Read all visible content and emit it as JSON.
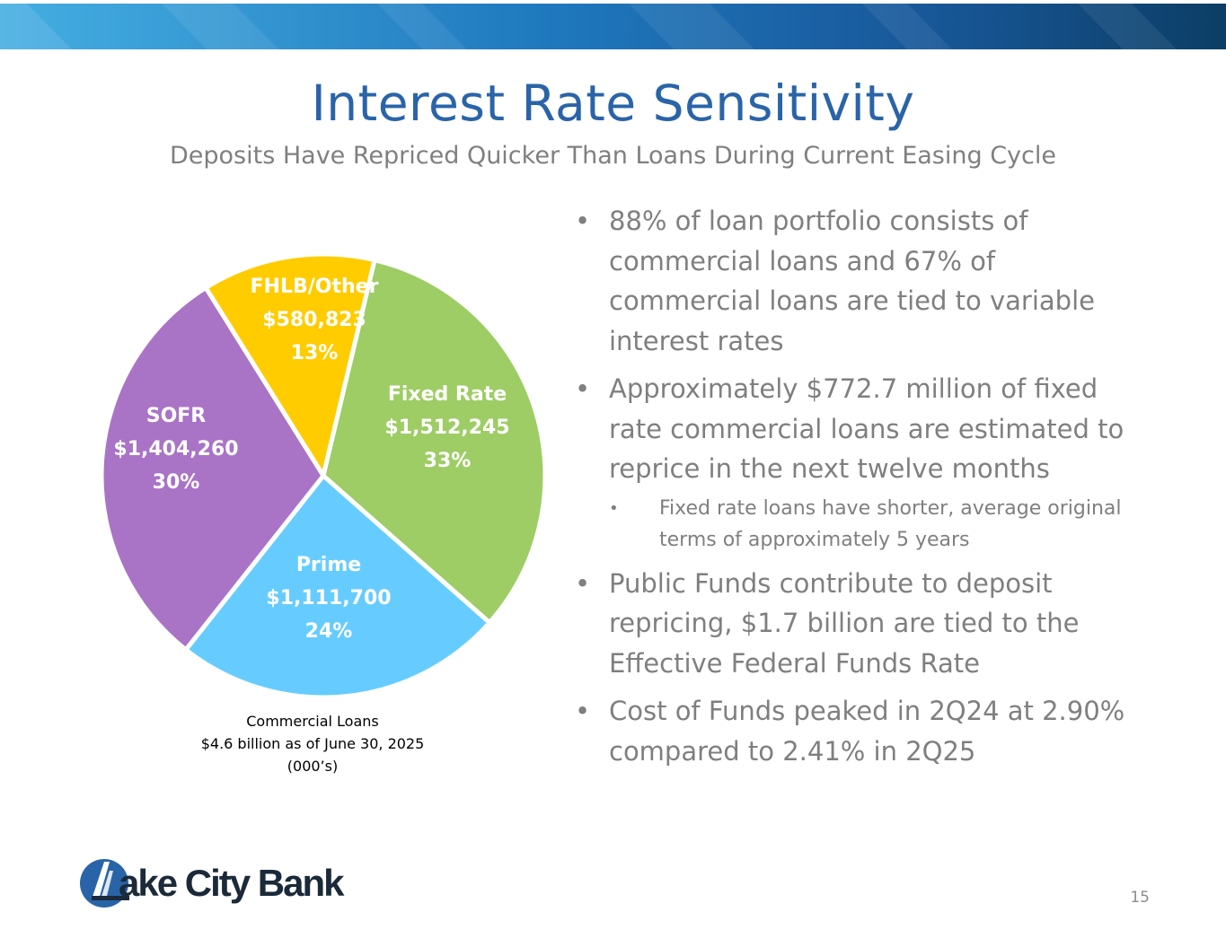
{
  "slide": {
    "title": "Interest Rate Sensitivity",
    "subtitle": "Deposits Have Repriced Quicker Than Loans During Current Easing Cycle",
    "page_number": "15"
  },
  "chart_data": {
    "type": "pie",
    "caption": [
      "Commercial Loans",
      "$4.6 billion as of June 30, 2025",
      "(000’s)"
    ],
    "slices": [
      {
        "name": "FHLB/Other",
        "value": 580823,
        "value_label": "$580,823",
        "percent_label": "13%",
        "color": "#ffcc00"
      },
      {
        "name": "Fixed Rate",
        "value": 1512245,
        "value_label": "$1,512,245",
        "percent_label": "33%",
        "color": "#9dcd64"
      },
      {
        "name": "Prime",
        "value": 1111700,
        "value_label": "$1,111,700",
        "percent_label": "24%",
        "color": "#66ccff"
      },
      {
        "name": "SOFR",
        "value": 1404260,
        "value_label": "$1,404,260",
        "percent_label": "30%",
        "color": "#a973c6"
      }
    ]
  },
  "bullets": [
    {
      "text": "88% of loan portfolio consists of commercial loans and 67% of commercial loans are tied to variable interest rates"
    },
    {
      "text": "Approximately $772.7 million of fixed rate commercial loans are estimated to reprice in the next twelve months",
      "sub": [
        "Fixed rate loans have shorter, average original terms of approximately 5 years"
      ]
    },
    {
      "text": "Public Funds contribute to deposit repricing, $1.7 billion are tied to the Effective Federal Funds Rate"
    },
    {
      "text": "Cost of Funds peaked in 2Q24 at 2.90% compared to 2.41% in 2Q25"
    }
  ],
  "bullet_glyph": "•",
  "logo": {
    "text": "ake City Bank"
  },
  "colors": {
    "accent": "#2a64a8",
    "banner_dark": "#0c3e66",
    "banner_light": "#3aa3d9"
  }
}
